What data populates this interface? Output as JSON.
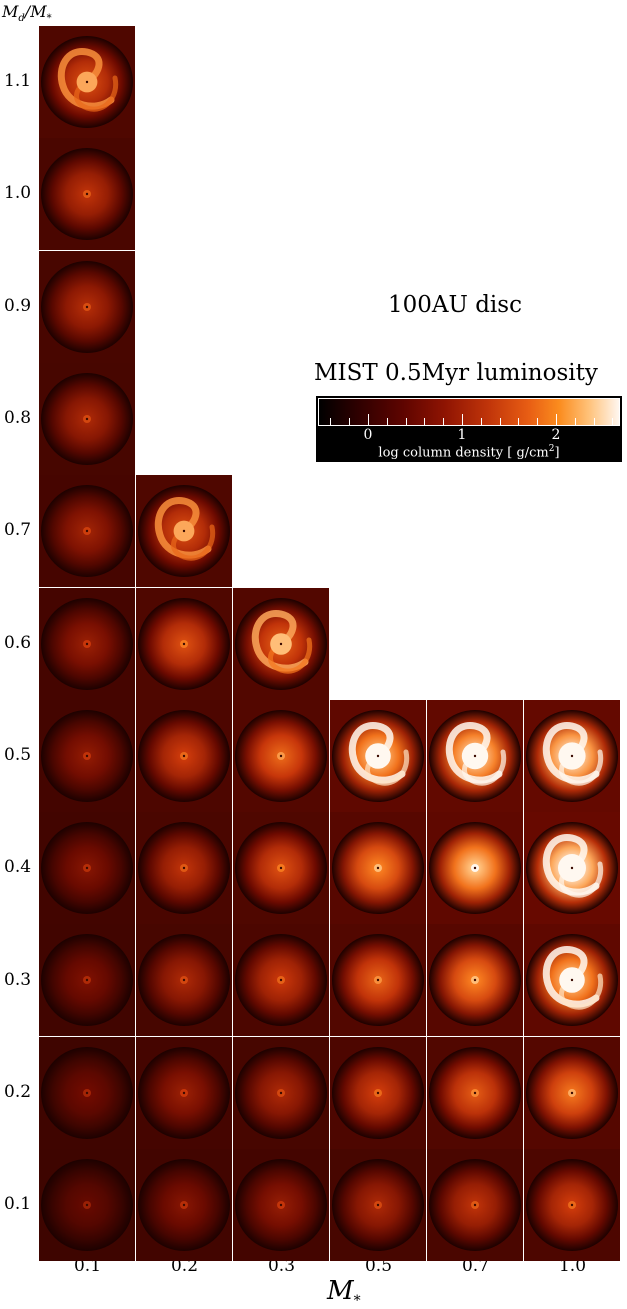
{
  "y_axis_title": "M_d/M_*",
  "y_axis_title_main": "M",
  "y_axis_title_sub": "d",
  "y_axis_title_rest": "/M",
  "y_axis_title_star": "*",
  "rows": [
    "1.1",
    "1.0",
    "0.9",
    "0.8",
    "0.7",
    "0.6",
    "0.5",
    "0.4",
    "0.3",
    "0.2",
    "0.1"
  ],
  "columns": [
    "0.1",
    "0.2",
    "0.3",
    "0.5",
    "0.7",
    "1.0"
  ],
  "x_axis_title_main": "M",
  "x_axis_title_sub": "*",
  "annotation_disc": "100AU disc",
  "annotation_model": "MIST 0.5Myr luminosity",
  "colorbar": {
    "ticks": [
      "0",
      "1",
      "2"
    ],
    "label_main": "log column density [ g/cm",
    "label_sup": "2",
    "label_end": "]",
    "colors": [
      "#000000",
      "#5e0400",
      "#c2360a",
      "#fb8c1e",
      "#fff6ef"
    ]
  },
  "panels": [
    {
      "row": "1.1",
      "col": "0.1",
      "type": "spiral",
      "bright": 0.55
    },
    {
      "row": "1.0",
      "col": "0.1",
      "type": "disc",
      "bright": 0.45
    },
    {
      "row": "0.9",
      "col": "0.1",
      "type": "disc",
      "bright": 0.42
    },
    {
      "row": "0.8",
      "col": "0.1",
      "type": "disc",
      "bright": 0.4
    },
    {
      "row": "0.7",
      "col": "0.1",
      "type": "disc",
      "bright": 0.37
    },
    {
      "row": "0.7",
      "col": "0.2",
      "type": "spiral",
      "bright": 0.55
    },
    {
      "row": "0.6",
      "col": "0.1",
      "type": "disc",
      "bright": 0.35
    },
    {
      "row": "0.6",
      "col": "0.2",
      "type": "disc",
      "bright": 0.55
    },
    {
      "row": "0.6",
      "col": "0.3",
      "type": "spiral",
      "bright": 0.6
    },
    {
      "row": "0.5",
      "col": "0.1",
      "type": "disc",
      "bright": 0.33
    },
    {
      "row": "0.5",
      "col": "0.2",
      "type": "disc",
      "bright": 0.5
    },
    {
      "row": "0.5",
      "col": "0.3",
      "type": "disc",
      "bright": 0.62
    },
    {
      "row": "0.5",
      "col": "0.5",
      "type": "spiral",
      "bright": 0.85
    },
    {
      "row": "0.5",
      "col": "0.7",
      "type": "spiral",
      "bright": 0.9
    },
    {
      "row": "0.5",
      "col": "1.0",
      "type": "spiral",
      "bright": 0.95
    },
    {
      "row": "0.4",
      "col": "0.1",
      "type": "disc",
      "bright": 0.3
    },
    {
      "row": "0.4",
      "col": "0.2",
      "type": "disc",
      "bright": 0.45
    },
    {
      "row": "0.4",
      "col": "0.3",
      "type": "disc",
      "bright": 0.55
    },
    {
      "row": "0.4",
      "col": "0.5",
      "type": "disc",
      "bright": 0.7
    },
    {
      "row": "0.4",
      "col": "0.7",
      "type": "disc",
      "bright": 0.85
    },
    {
      "row": "0.4",
      "col": "1.0",
      "type": "spiral",
      "bright": 1.0
    },
    {
      "row": "0.3",
      "col": "0.1",
      "type": "disc",
      "bright": 0.28
    },
    {
      "row": "0.3",
      "col": "0.2",
      "type": "disc",
      "bright": 0.4
    },
    {
      "row": "0.3",
      "col": "0.3",
      "type": "disc",
      "bright": 0.48
    },
    {
      "row": "0.3",
      "col": "0.5",
      "type": "disc",
      "bright": 0.6
    },
    {
      "row": "0.3",
      "col": "0.7",
      "type": "disc",
      "bright": 0.7
    },
    {
      "row": "0.3",
      "col": "1.0",
      "type": "spiral",
      "bright": 0.85
    },
    {
      "row": "0.2",
      "col": "0.1",
      "type": "disc",
      "bright": 0.25
    },
    {
      "row": "0.2",
      "col": "0.2",
      "type": "disc",
      "bright": 0.35
    },
    {
      "row": "0.2",
      "col": "0.3",
      "type": "disc",
      "bright": 0.4
    },
    {
      "row": "0.2",
      "col": "0.5",
      "type": "disc",
      "bright": 0.5
    },
    {
      "row": "0.2",
      "col": "0.7",
      "type": "disc",
      "bright": 0.58
    },
    {
      "row": "0.2",
      "col": "1.0",
      "type": "disc",
      "bright": 0.66
    },
    {
      "row": "0.1",
      "col": "0.1",
      "type": "disc",
      "bright": 0.22
    },
    {
      "row": "0.1",
      "col": "0.2",
      "type": "disc",
      "bright": 0.3
    },
    {
      "row": "0.1",
      "col": "0.3",
      "type": "disc",
      "bright": 0.34
    },
    {
      "row": "0.1",
      "col": "0.5",
      "type": "disc",
      "bright": 0.4
    },
    {
      "row": "0.1",
      "col": "0.7",
      "type": "disc",
      "bright": 0.45
    },
    {
      "row": "0.1",
      "col": "1.0",
      "type": "disc",
      "bright": 0.5
    }
  ]
}
